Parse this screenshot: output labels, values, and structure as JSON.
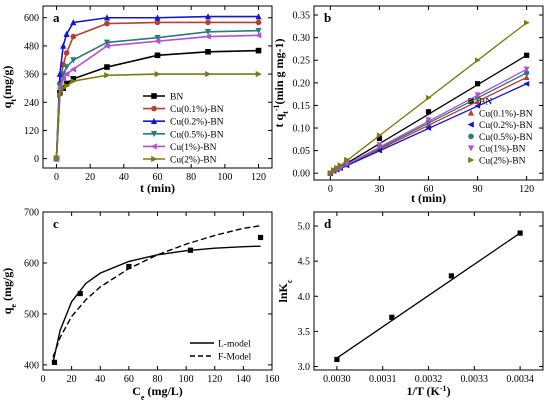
{
  "colors": {
    "BN": "#000000",
    "Cu(0.1%)-BN": "#b5402f",
    "Cu(0.2%)-BN": "#1414d4",
    "Cu(0.5%)-BN": "#2a7a7a",
    "Cu(1%)-BN": "#b64fd6",
    "Cu(2%)-BN": "#7a7a10"
  },
  "chart_data": [
    {
      "panel": "a",
      "type": "line",
      "xlabel": "t (min)",
      "ylabel": "q_t(mg/g)",
      "xlim": [
        -8,
        128
      ],
      "ylim": [
        -40,
        650
      ],
      "xticks": [
        0,
        20,
        40,
        60,
        80,
        100,
        120
      ],
      "yticks": [
        0,
        120,
        240,
        360,
        480,
        600
      ],
      "legend": "bottom-right",
      "series": [
        {
          "name": "BN",
          "marker": "square",
          "x": [
            0,
            2,
            4,
            6,
            10,
            30,
            60,
            90,
            120
          ],
          "y": [
            0,
            280,
            300,
            320,
            340,
            390,
            440,
            455,
            460
          ]
        },
        {
          "name": "Cu(0.1%)-BN",
          "marker": "circle",
          "x": [
            0,
            2,
            4,
            6,
            10,
            30,
            60,
            90,
            120
          ],
          "y": [
            0,
            320,
            400,
            450,
            520,
            575,
            580,
            580,
            580
          ]
        },
        {
          "name": "Cu(0.2%)-BN",
          "marker": "triangle-up",
          "x": [
            0,
            2,
            4,
            6,
            10,
            30,
            60,
            90,
            120
          ],
          "y": [
            0,
            360,
            480,
            530,
            580,
            600,
            600,
            605,
            605
          ]
        },
        {
          "name": "Cu(0.5%)-BN",
          "marker": "triangle-down",
          "x": [
            0,
            2,
            4,
            6,
            10,
            30,
            60,
            90,
            120
          ],
          "y": [
            0,
            310,
            360,
            390,
            420,
            495,
            515,
            540,
            545
          ]
        },
        {
          "name": "Cu(1%)-BN",
          "marker": "triangle-left",
          "x": [
            0,
            2,
            4,
            6,
            10,
            30,
            60,
            90,
            120
          ],
          "y": [
            0,
            300,
            340,
            360,
            380,
            480,
            500,
            520,
            525
          ]
        },
        {
          "name": "Cu(2%)-BN",
          "marker": "triangle-right",
          "x": [
            0,
            2,
            4,
            6,
            10,
            30,
            60,
            90,
            120
          ],
          "y": [
            0,
            270,
            300,
            310,
            330,
            355,
            360,
            360,
            360
          ]
        }
      ]
    },
    {
      "panel": "b",
      "type": "line",
      "xlabel": "t (min)",
      "ylabel": "t q_t^-1(min g mg-1)",
      "xlim": [
        -10,
        130
      ],
      "ylim": [
        -0.015,
        0.37
      ],
      "xticks": [
        0,
        30,
        60,
        90,
        120
      ],
      "yticks": [
        0.0,
        0.05,
        0.1,
        0.15,
        0.2,
        0.25,
        0.3,
        0.35
      ],
      "legend": "top-left",
      "series": [
        {
          "name": "BN",
          "marker": "square",
          "x": [
            0,
            2,
            4,
            6,
            10,
            30,
            60,
            90,
            120
          ],
          "y": [
            0,
            0.006,
            0.01,
            0.014,
            0.023,
            0.077,
            0.136,
            0.198,
            0.261
          ]
        },
        {
          "name": "Cu(0.1%)-BN",
          "marker": "triangle-up",
          "x": [
            0,
            2,
            4,
            6,
            10,
            30,
            60,
            90,
            120
          ],
          "y": [
            0,
            0.005,
            0.009,
            0.012,
            0.019,
            0.058,
            0.107,
            0.159,
            0.212
          ]
        },
        {
          "name": "Cu(0.2%)-BN",
          "marker": "triangle-left",
          "x": [
            0,
            2,
            4,
            6,
            10,
            30,
            60,
            90,
            120
          ],
          "y": [
            0,
            0.005,
            0.008,
            0.011,
            0.017,
            0.05,
            0.1,
            0.149,
            0.198
          ]
        },
        {
          "name": "Cu(0.5%)-BN",
          "marker": "circle",
          "x": [
            0,
            2,
            4,
            6,
            10,
            30,
            60,
            90,
            120
          ],
          "y": [
            0,
            0.006,
            0.01,
            0.013,
            0.021,
            0.061,
            0.115,
            0.168,
            0.222
          ]
        },
        {
          "name": "Cu(1%)-BN",
          "marker": "triangle-down",
          "x": [
            0,
            2,
            4,
            6,
            10,
            30,
            60,
            90,
            120
          ],
          "y": [
            0,
            0.006,
            0.01,
            0.014,
            0.022,
            0.063,
            0.118,
            0.173,
            0.23
          ]
        },
        {
          "name": "Cu(2%)-BN",
          "marker": "triangle-right",
          "x": [
            0,
            2,
            4,
            6,
            10,
            30,
            60,
            90,
            120
          ],
          "y": [
            0,
            0.007,
            0.012,
            0.018,
            0.03,
            0.084,
            0.167,
            0.25,
            0.333
          ]
        }
      ]
    },
    {
      "panel": "c",
      "type": "scatter",
      "xlabel": "C_e (mg/L)",
      "ylabel": "q_e (mg/g)",
      "xlim": [
        0,
        160
      ],
      "ylim": [
        390,
        700
      ],
      "xticks": [
        0,
        20,
        40,
        60,
        80,
        100,
        120,
        140,
        160
      ],
      "yticks": [
        400,
        500,
        600,
        700
      ],
      "legend": "bottom-right",
      "points": {
        "x": [
          8,
          26,
          60,
          103,
          152
        ],
        "y": [
          405,
          540,
          593,
          625,
          650
        ]
      },
      "fits": [
        {
          "name": "L-model",
          "style": "solid",
          "x": [
            7,
            12,
            20,
            30,
            40,
            60,
            80,
            100,
            120,
            140,
            152
          ],
          "y": [
            405,
            468,
            524,
            560,
            580,
            603,
            616,
            624,
            629,
            632,
            633
          ]
        },
        {
          "name": "F-Model",
          "style": "dashed",
          "x": [
            7,
            12,
            20,
            30,
            40,
            60,
            80,
            100,
            120,
            140,
            152
          ],
          "y": [
            415,
            454,
            495,
            528,
            553,
            589,
            616,
            637,
            654,
            668,
            673
          ]
        }
      ]
    },
    {
      "panel": "d",
      "type": "line",
      "xlabel": "1/T (K^-1)",
      "ylabel": "lnK_c",
      "xlim": [
        0.00295,
        0.00345
      ],
      "ylim": [
        2.95,
        5.2
      ],
      "xticks": [
        0.003,
        0.0031,
        0.0032,
        0.0033,
        0.0034
      ],
      "yticks": [
        3.0,
        3.5,
        4.0,
        4.5,
        5.0
      ],
      "points": {
        "x": [
          0.003,
          0.00312,
          0.00325,
          0.0034
        ],
        "y": [
          3.1,
          3.7,
          4.29,
          4.9
        ]
      },
      "fit": {
        "x": [
          0.003,
          0.0034
        ],
        "y": [
          3.12,
          4.9
        ]
      }
    }
  ]
}
